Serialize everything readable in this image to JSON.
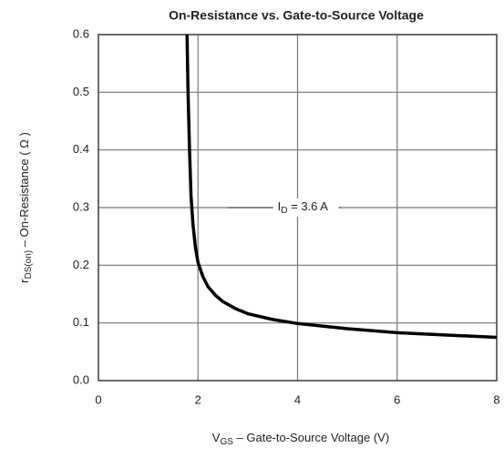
{
  "chart_data": {
    "type": "line",
    "title": "On-Resistance vs. Gate-to-Source Voltage",
    "x_label": {
      "main": "V",
      "sub": "GS",
      "rest": " – Gate-to-Source Voltage (V)"
    },
    "y_label": {
      "main": "r",
      "sub": "DS(on)",
      "rest": " – On-Resistance ( Ω )"
    },
    "annotation": {
      "main": "I",
      "sub": "D",
      "rest": " = 3.6 A",
      "x": 3.6,
      "y": 0.3
    },
    "x": [
      1.78,
      1.8,
      1.83,
      1.86,
      1.9,
      1.95,
      2.0,
      2.1,
      2.2,
      2.35,
      2.5,
      2.75,
      3.0,
      3.5,
      4.0,
      5.0,
      6.0,
      7.0,
      8.0
    ],
    "series": [
      {
        "name": "rDS(on)",
        "color": "#000000",
        "values": [
          0.6,
          0.5,
          0.4,
          0.32,
          0.27,
          0.23,
          0.205,
          0.18,
          0.163,
          0.148,
          0.137,
          0.125,
          0.116,
          0.106,
          0.099,
          0.09,
          0.083,
          0.079,
          0.075
        ]
      }
    ],
    "xlim": [
      0,
      8
    ],
    "xticks": [
      0,
      2,
      4,
      6,
      8
    ],
    "ylim": [
      0,
      0.6
    ],
    "yticks": [
      {
        "value": 0,
        "label": "0.0"
      },
      0.1,
      0.2,
      0.3,
      0.4,
      0.5,
      0.6
    ],
    "grid": true
  }
}
